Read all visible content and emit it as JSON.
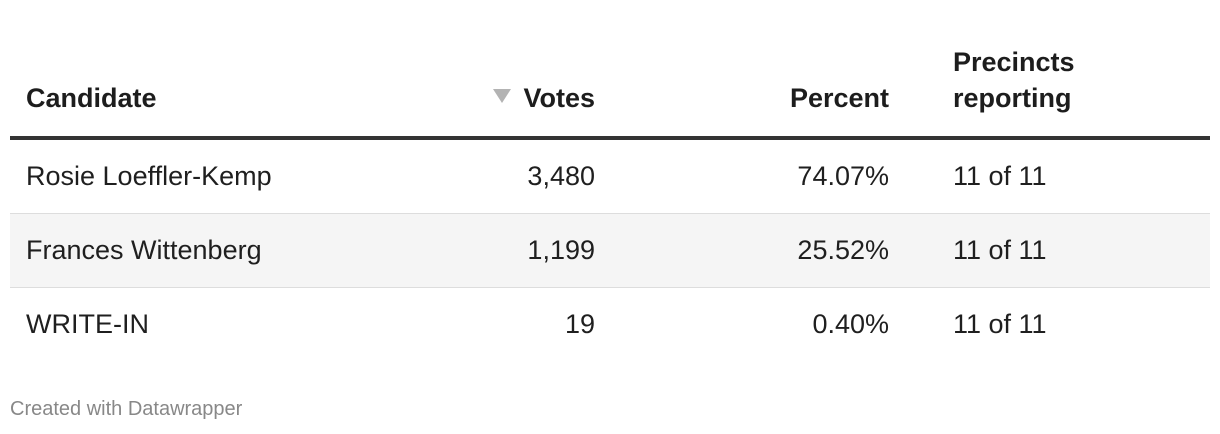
{
  "chart_data": {
    "type": "table",
    "columns": [
      "Candidate",
      "Votes",
      "Percent",
      "Precincts reporting"
    ],
    "sorted_column": "Votes",
    "sort_direction": "descending",
    "rows": [
      {
        "candidate": "Rosie Loeffler-Kemp",
        "votes": "3,480",
        "percent": "74.07%",
        "precincts": "11 of 11"
      },
      {
        "candidate": "Frances Wittenberg",
        "votes": "1,199",
        "percent": "25.52%",
        "precincts": "11 of 11"
      },
      {
        "candidate": "WRITE-IN",
        "votes": "19",
        "percent": "0.40%",
        "precincts": "11 of 11"
      }
    ]
  },
  "headers": {
    "candidate": "Candidate",
    "votes": "Votes",
    "percent": "Percent",
    "precincts": "Precincts reporting"
  },
  "credit": "Created with Datawrapper",
  "colors": {
    "header_rule": "#333333",
    "alt_row_bg": "#f5f5f5",
    "row_divider": "#dddddd",
    "sort_arrow": "#b3b3b3",
    "credit_text": "#888888"
  },
  "icons": {
    "sort": "sort-descending-icon"
  }
}
